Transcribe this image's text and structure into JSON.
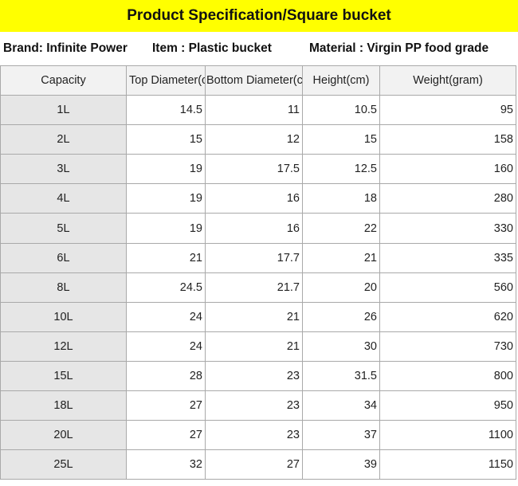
{
  "title": "Product Specification/Square bucket",
  "info": {
    "brand": "Brand: Infinite Power",
    "item": "Item : Plastic bucket",
    "material": "Material : Virgin PP food grade"
  },
  "table": {
    "headers": [
      "Capacity",
      "Top Diameter(cm)",
      "Bottom Diameter(cm)",
      "Height(cm)",
      "Weight(gram)"
    ],
    "rows": [
      [
        "1L",
        "14.5",
        "11",
        "10.5",
        "95"
      ],
      [
        "2L",
        "15",
        "12",
        "15",
        "158"
      ],
      [
        "3L",
        "19",
        "17.5",
        "12.5",
        "160"
      ],
      [
        "4L",
        "19",
        "16",
        "18",
        "280"
      ],
      [
        "5L",
        "19",
        "16",
        "22",
        "330"
      ],
      [
        "6L",
        "21",
        "17.7",
        "21",
        "335"
      ],
      [
        "8L",
        "24.5",
        "21.7",
        "20",
        "560"
      ],
      [
        "10L",
        "24",
        "21",
        "26",
        "620"
      ],
      [
        "12L",
        "24",
        "21",
        "30",
        "730"
      ],
      [
        "15L",
        "28",
        "23",
        "31.5",
        "800"
      ],
      [
        "18L",
        "27",
        "23",
        "34",
        "950"
      ],
      [
        "20L",
        "27",
        "23",
        "37",
        "1100"
      ],
      [
        "25L",
        "32",
        "27",
        "39",
        "1150"
      ]
    ]
  }
}
